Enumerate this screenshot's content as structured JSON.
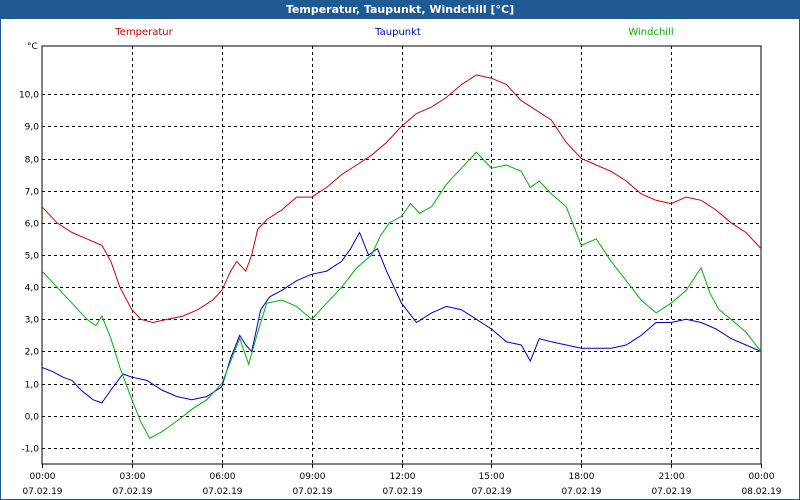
{
  "window": {
    "title": "Temperatur, Taupunkt, Windchill [°C]"
  },
  "colors": {
    "title_bar": "#1f5a92",
    "temperatur": "#cc0000",
    "taupunkt": "#0000cc",
    "windchill": "#00b400"
  },
  "chart_data": {
    "type": "line",
    "title": "Temperatur, Taupunkt, Windchill [°C]",
    "ylabel": "°C",
    "ylim": [
      -1.5,
      11.5
    ],
    "xlim": [
      0,
      24
    ],
    "yticks": [
      -1.0,
      0.0,
      1.0,
      2.0,
      3.0,
      4.0,
      5.0,
      6.0,
      7.0,
      8.0,
      9.0,
      10.0
    ],
    "ytick_labels": [
      "-1,0",
      "0,0",
      "1,0",
      "2,0",
      "3,0",
      "4,0",
      "5,0",
      "6,0",
      "7,0",
      "8,0",
      "9,0",
      "10,0"
    ],
    "xticks": [
      0,
      3,
      6,
      9,
      12,
      15,
      18,
      21,
      24
    ],
    "xtick_labels": [
      {
        "time": "00:00",
        "date": "07.02.19"
      },
      {
        "time": "03:00",
        "date": "07.02.19"
      },
      {
        "time": "06:00",
        "date": "07.02.19"
      },
      {
        "time": "09:00",
        "date": "07.02.19"
      },
      {
        "time": "12:00",
        "date": "07.02.19"
      },
      {
        "time": "15:00",
        "date": "07.02.19"
      },
      {
        "time": "18:00",
        "date": "07.02.19"
      },
      {
        "time": "21:00",
        "date": "07.02.19"
      },
      {
        "time": "00:00",
        "date": "08.02.19"
      }
    ],
    "grid": true,
    "legend_position": "top",
    "series": [
      {
        "name": "Temperatur",
        "color": "#cc0000",
        "points": [
          [
            0,
            6.5
          ],
          [
            0.5,
            6.0
          ],
          [
            1,
            5.7
          ],
          [
            1.5,
            5.5
          ],
          [
            2,
            5.3
          ],
          [
            2.3,
            4.8
          ],
          [
            2.6,
            4.0
          ],
          [
            3,
            3.3
          ],
          [
            3.3,
            3.0
          ],
          [
            3.7,
            2.9
          ],
          [
            4.2,
            3.0
          ],
          [
            4.7,
            3.1
          ],
          [
            5.2,
            3.3
          ],
          [
            5.7,
            3.6
          ],
          [
            6,
            3.9
          ],
          [
            6.3,
            4.5
          ],
          [
            6.5,
            4.8
          ],
          [
            6.8,
            4.5
          ],
          [
            7,
            5.0
          ],
          [
            7.2,
            5.8
          ],
          [
            7.5,
            6.1
          ],
          [
            8,
            6.4
          ],
          [
            8.5,
            6.8
          ],
          [
            9,
            6.8
          ],
          [
            9.5,
            7.1
          ],
          [
            10,
            7.5
          ],
          [
            10.5,
            7.8
          ],
          [
            11,
            8.1
          ],
          [
            11.5,
            8.5
          ],
          [
            12,
            9.0
          ],
          [
            12.5,
            9.4
          ],
          [
            13,
            9.6
          ],
          [
            13.5,
            9.9
          ],
          [
            14,
            10.3
          ],
          [
            14.5,
            10.6
          ],
          [
            15,
            10.5
          ],
          [
            15.5,
            10.3
          ],
          [
            16,
            9.8
          ],
          [
            16.5,
            9.5
          ],
          [
            17,
            9.2
          ],
          [
            17.5,
            8.5
          ],
          [
            18,
            8.0
          ],
          [
            18.5,
            7.8
          ],
          [
            19,
            7.6
          ],
          [
            19.5,
            7.3
          ],
          [
            20,
            6.9
          ],
          [
            20.5,
            6.7
          ],
          [
            21,
            6.6
          ],
          [
            21.5,
            6.8
          ],
          [
            22,
            6.7
          ],
          [
            22.5,
            6.4
          ],
          [
            23,
            6.0
          ],
          [
            23.5,
            5.7
          ],
          [
            24,
            5.2
          ]
        ]
      },
      {
        "name": "Taupunkt",
        "color": "#0000cc",
        "points": [
          [
            0,
            1.5
          ],
          [
            0.3,
            1.4
          ],
          [
            0.7,
            1.2
          ],
          [
            1,
            1.1
          ],
          [
            1.3,
            0.8
          ],
          [
            1.7,
            0.5
          ],
          [
            2,
            0.4
          ],
          [
            2.3,
            0.8
          ],
          [
            2.7,
            1.3
          ],
          [
            3,
            1.2
          ],
          [
            3.5,
            1.1
          ],
          [
            4,
            0.8
          ],
          [
            4.5,
            0.6
          ],
          [
            5,
            0.5
          ],
          [
            5.5,
            0.6
          ],
          [
            6,
            0.9
          ],
          [
            6.3,
            1.8
          ],
          [
            6.6,
            2.5
          ],
          [
            6.8,
            2.2
          ],
          [
            7,
            2.0
          ],
          [
            7.3,
            3.3
          ],
          [
            7.6,
            3.7
          ],
          [
            8,
            3.9
          ],
          [
            8.5,
            4.2
          ],
          [
            9,
            4.4
          ],
          [
            9.5,
            4.5
          ],
          [
            10,
            4.8
          ],
          [
            10.3,
            5.2
          ],
          [
            10.6,
            5.7
          ],
          [
            10.9,
            5.0
          ],
          [
            11.2,
            5.2
          ],
          [
            11.5,
            4.5
          ],
          [
            12,
            3.5
          ],
          [
            12.5,
            2.9
          ],
          [
            13,
            3.2
          ],
          [
            13.5,
            3.4
          ],
          [
            14,
            3.3
          ],
          [
            14.5,
            3.0
          ],
          [
            15,
            2.7
          ],
          [
            15.5,
            2.3
          ],
          [
            16,
            2.2
          ],
          [
            16.3,
            1.7
          ],
          [
            16.6,
            2.4
          ],
          [
            17,
            2.3
          ],
          [
            17.5,
            2.2
          ],
          [
            18,
            2.1
          ],
          [
            18.5,
            2.1
          ],
          [
            19,
            2.1
          ],
          [
            19.5,
            2.2
          ],
          [
            20,
            2.5
          ],
          [
            20.5,
            2.9
          ],
          [
            21,
            2.9
          ],
          [
            21.5,
            3.0
          ],
          [
            22,
            2.9
          ],
          [
            22.5,
            2.7
          ],
          [
            23,
            2.4
          ],
          [
            23.5,
            2.2
          ],
          [
            24,
            2.0
          ]
        ]
      },
      {
        "name": "Windchill",
        "color": "#00b400",
        "points": [
          [
            0,
            4.5
          ],
          [
            0.5,
            4.0
          ],
          [
            1,
            3.5
          ],
          [
            1.5,
            3.0
          ],
          [
            1.8,
            2.8
          ],
          [
            2,
            3.1
          ],
          [
            2.3,
            2.4
          ],
          [
            2.6,
            1.5
          ],
          [
            3,
            0.5
          ],
          [
            3.3,
            -0.2
          ],
          [
            3.6,
            -0.7
          ],
          [
            4,
            -0.5
          ],
          [
            4.3,
            -0.3
          ],
          [
            4.6,
            -0.1
          ],
          [
            5,
            0.2
          ],
          [
            5.5,
            0.5
          ],
          [
            6,
            1.0
          ],
          [
            6.3,
            1.7
          ],
          [
            6.6,
            2.4
          ],
          [
            6.9,
            1.6
          ],
          [
            7.2,
            2.6
          ],
          [
            7.5,
            3.5
          ],
          [
            8,
            3.6
          ],
          [
            8.5,
            3.4
          ],
          [
            9,
            3.0
          ],
          [
            9.5,
            3.5
          ],
          [
            10,
            4.0
          ],
          [
            10.5,
            4.6
          ],
          [
            11,
            5.0
          ],
          [
            11.3,
            5.6
          ],
          [
            11.6,
            6.0
          ],
          [
            12,
            6.2
          ],
          [
            12.3,
            6.6
          ],
          [
            12.6,
            6.3
          ],
          [
            13,
            6.5
          ],
          [
            13.5,
            7.2
          ],
          [
            14,
            7.7
          ],
          [
            14.5,
            8.2
          ],
          [
            15,
            7.7
          ],
          [
            15.5,
            7.8
          ],
          [
            16,
            7.6
          ],
          [
            16.3,
            7.1
          ],
          [
            16.6,
            7.3
          ],
          [
            17,
            6.9
          ],
          [
            17.5,
            6.5
          ],
          [
            18,
            5.3
          ],
          [
            18.5,
            5.5
          ],
          [
            19,
            4.8
          ],
          [
            19.5,
            4.2
          ],
          [
            20,
            3.6
          ],
          [
            20.5,
            3.2
          ],
          [
            21,
            3.5
          ],
          [
            21.5,
            3.9
          ],
          [
            22,
            4.6
          ],
          [
            22.3,
            3.8
          ],
          [
            22.6,
            3.3
          ],
          [
            23,
            3.0
          ],
          [
            23.5,
            2.6
          ],
          [
            24,
            2.0
          ]
        ]
      }
    ]
  }
}
